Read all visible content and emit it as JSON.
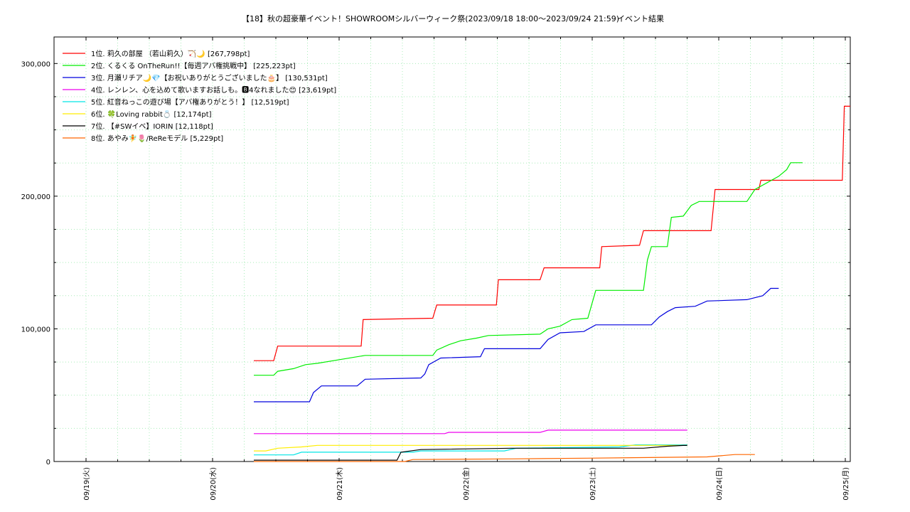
{
  "chart_data": {
    "type": "line",
    "title": "【18】秋の超豪華イベント！SHOWROOMシルバーウィーク祭(2023/09/18 18:00～2023/09/24 21:59)",
    "subtitle": "イベント結果",
    "xlim": [
      "09/18 20:00",
      "09/25 07:00"
    ],
    "ylim": [
      0,
      320000
    ],
    "x_tick_labels": [
      "09/19(火)",
      "09/20(水)",
      "09/21(木)",
      "09/22(金)",
      "09/23(土)",
      "09/24(日)",
      "09/25(月)"
    ],
    "y_tick_labels": [
      "0",
      "100,000",
      "200,000",
      "300,000"
    ],
    "y_ticks": [
      0,
      100000,
      200000,
      300000
    ],
    "grid": true,
    "legend_position": "top-left",
    "series": [
      {
        "name": "1位. 莉久の部屋 （若山莉久）🏹🌙 [267,798pt]",
        "color": "#ff0000",
        "points": [
          [
            "09/20 18:00",
            76000
          ],
          [
            "09/20 23:00",
            76000
          ],
          [
            "09/21 00:00",
            87000
          ],
          [
            "09/21 21:00",
            87000
          ],
          [
            "09/21 21:30",
            107000
          ],
          [
            "09/22 15:00",
            108000
          ],
          [
            "09/22 16:00",
            118000
          ],
          [
            "09/23 07:00",
            118000
          ],
          [
            "09/23 07:30",
            137000
          ],
          [
            "09/23 18:00",
            137000
          ],
          [
            "09/23 19:00",
            146000
          ],
          [
            "09/24 09:00",
            146000
          ],
          [
            "09/24 09:30",
            162000
          ],
          [
            "09/24 19:00",
            163000
          ],
          [
            "09/24 20:00",
            174000
          ],
          [
            "09/25 13:00",
            174000
          ],
          [
            "09/25 14:00",
            205000
          ],
          [
            "09/26 01:00",
            205000
          ],
          [
            "09/26 01:30",
            212000
          ],
          [
            "09/26 22:00",
            212000
          ],
          [
            "09/26 22:30",
            267798
          ],
          [
            "09/27 00:00",
            267798
          ]
        ]
      },
      {
        "name": "2位. くるくる OnTheRun!!【毎週アバ権挑戦中】 [225,223pt]",
        "color": "#00ee00",
        "points": [
          [
            "09/20 18:00",
            65000
          ],
          [
            "09/20 23:00",
            65000
          ],
          [
            "09/21 00:00",
            68000
          ],
          [
            "09/21 04:00",
            70000
          ],
          [
            "09/21 07:00",
            73000
          ],
          [
            "09/21 10:00",
            74000
          ],
          [
            "09/21 22:00",
            80000
          ],
          [
            "09/22 15:00",
            80000
          ],
          [
            "09/22 16:00",
            84000
          ],
          [
            "09/22 19:00",
            88000
          ],
          [
            "09/22 22:00",
            91000
          ],
          [
            "09/23 02:00",
            93000
          ],
          [
            "09/23 05:00",
            95000
          ],
          [
            "09/23 18:00",
            96000
          ],
          [
            "09/23 20:00",
            100000
          ],
          [
            "09/23 23:00",
            102000
          ],
          [
            "09/24 02:00",
            107000
          ],
          [
            "09/24 06:00",
            108000
          ],
          [
            "09/24 08:00",
            129000
          ],
          [
            "09/24 20:00",
            129000
          ],
          [
            "09/24 21:00",
            152000
          ],
          [
            "09/24 22:00",
            162000
          ],
          [
            "09/25 02:00",
            162000
          ],
          [
            "09/25 03:00",
            184000
          ],
          [
            "09/25 06:00",
            185000
          ],
          [
            "09/25 08:00",
            193000
          ],
          [
            "09/25 10:00",
            196000
          ],
          [
            "09/25 22:00",
            196000
          ],
          [
            "09/26 00:00",
            205000
          ],
          [
            "09/26 03:00",
            210000
          ],
          [
            "09/26 06:00",
            215000
          ],
          [
            "09/26 08:00",
            220000
          ],
          [
            "09/26 09:00",
            225223
          ],
          [
            "09/26 12:00",
            225223
          ]
        ]
      },
      {
        "name": "3位. 月瀬リチア🌙💎【お祝いありがとうございました🎂】 [130,531pt]",
        "color": "#0000dd",
        "points": [
          [
            "09/20 18:00",
            45000
          ],
          [
            "09/21 08:00",
            45000
          ],
          [
            "09/21 09:00",
            52000
          ],
          [
            "09/21 11:00",
            57000
          ],
          [
            "09/21 20:00",
            57000
          ],
          [
            "09/21 22:00",
            62000
          ],
          [
            "09/22 12:00",
            63000
          ],
          [
            "09/22 13:00",
            66000
          ],
          [
            "09/22 14:00",
            73000
          ],
          [
            "09/22 17:00",
            78000
          ],
          [
            "09/23 03:00",
            79000
          ],
          [
            "09/23 04:00",
            85000
          ],
          [
            "09/23 18:00",
            85000
          ],
          [
            "09/23 20:00",
            92000
          ],
          [
            "09/23 23:00",
            97000
          ],
          [
            "09/24 05:00",
            98000
          ],
          [
            "09/24 08:00",
            103000
          ],
          [
            "09/24 22:00",
            103000
          ],
          [
            "09/25 00:00",
            109000
          ],
          [
            "09/25 02:00",
            113000
          ],
          [
            "09/25 04:00",
            116000
          ],
          [
            "09/25 09:00",
            117000
          ],
          [
            "09/25 12:00",
            121000
          ],
          [
            "09/25 22:00",
            122000
          ],
          [
            "09/26 02:00",
            125000
          ],
          [
            "09/26 04:00",
            130531
          ],
          [
            "09/26 06:00",
            130531
          ]
        ]
      },
      {
        "name": "4位. レンレン、心を込めて歌いますお話しも。🅱4なれました😊 [23,619pt]",
        "color": "#ee00ee",
        "points": [
          [
            "09/20 18:00",
            21000
          ],
          [
            "09/22 18:00",
            21000
          ],
          [
            "09/22 19:00",
            22000
          ],
          [
            "09/23 18:00",
            22000
          ],
          [
            "09/23 20:00",
            23619
          ],
          [
            "09/25 07:00",
            23619
          ]
        ]
      },
      {
        "name": "5位. 紅音ねっこの遊び場【アバ権ありがとう！】 [12,519pt]",
        "color": "#00e5e5",
        "points": [
          [
            "09/20 18:00",
            5000
          ],
          [
            "09/21 04:00",
            5000
          ],
          [
            "09/21 06:00",
            7000
          ],
          [
            "09/22 10:00",
            7000
          ],
          [
            "09/22 12:00",
            8000
          ],
          [
            "09/23 09:00",
            8000
          ],
          [
            "09/23 12:00",
            10000
          ],
          [
            "09/24 14:00",
            11000
          ],
          [
            "09/24 18:00",
            12519
          ],
          [
            "09/25 07:00",
            12519
          ]
        ]
      },
      {
        "name": "6位. 🍀Loving rabbit💍 [12,174pt]",
        "color": "#ffee00",
        "points": [
          [
            "09/20 18:00",
            8000
          ],
          [
            "09/20 21:00",
            8000
          ],
          [
            "09/21 00:00",
            10000
          ],
          [
            "09/21 06:00",
            11000
          ],
          [
            "09/21 10:00",
            12174
          ],
          [
            "09/25 07:00",
            12174
          ]
        ]
      },
      {
        "name": "7位. 【#SWイベ】IORIN [12,118pt]",
        "color": "#000000",
        "points": [
          [
            "09/20 18:00",
            1000
          ],
          [
            "09/22 06:00",
            1000
          ],
          [
            "09/22 07:00",
            7000
          ],
          [
            "09/22 12:00",
            9000
          ],
          [
            "09/23 11:00",
            10000
          ],
          [
            "09/24 20:00",
            10000
          ],
          [
            "09/25 02:00",
            11500
          ],
          [
            "09/25 06:00",
            12118
          ],
          [
            "09/25 07:00",
            12118
          ]
        ]
      },
      {
        "name": "8位. あやみ🧚🌷/ReReモデル [5,229pt]",
        "color": "#ff6600",
        "points": [
          [
            "09/20 18:00",
            0
          ],
          [
            "09/22 08:00",
            0
          ],
          [
            "09/22 10:00",
            1500
          ],
          [
            "09/23 11:00",
            2000
          ],
          [
            "09/24 06:00",
            2500
          ],
          [
            "09/25 12:00",
            3500
          ],
          [
            "09/25 19:00",
            5229
          ],
          [
            "09/26 00:00",
            5229
          ]
        ]
      }
    ]
  }
}
